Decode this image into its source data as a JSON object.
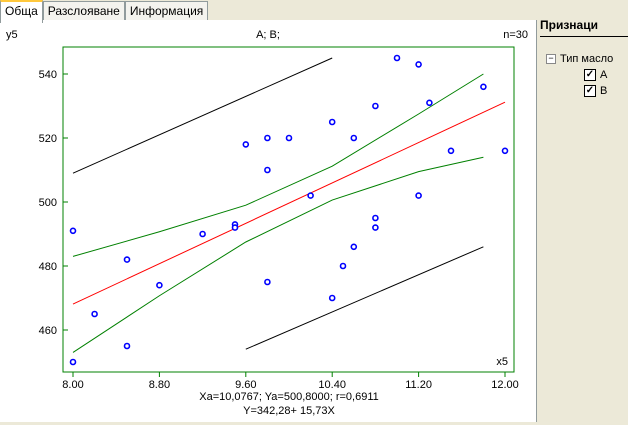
{
  "tabs": [
    "Обща",
    "Разслояване",
    "Информация"
  ],
  "side": {
    "title": "Признаци",
    "group": "Тип масло",
    "items": [
      {
        "label": "A",
        "checked": true
      },
      {
        "label": "B",
        "checked": true
      }
    ]
  },
  "chart_data": {
    "type": "scatter",
    "title": "A; B;",
    "n_label": "n=30",
    "ylabel": "y5",
    "xlabel": "x5",
    "xlim": [
      7.9,
      12.08
    ],
    "ylim": [
      446,
      551
    ],
    "xticks": [
      "8.00",
      "8.80",
      "9.60",
      "10.40",
      "11.20",
      "12.00"
    ],
    "yticks": [
      "460",
      "480",
      "500",
      "520",
      "540"
    ],
    "stats": "Xa=10,0767; Ya=500,8000; r=0,6911",
    "equation": "Y=342,28+ 15,73X",
    "points": [
      [
        8.0,
        450
      ],
      [
        8.0,
        491
      ],
      [
        8.2,
        465
      ],
      [
        8.5,
        482
      ],
      [
        8.5,
        455
      ],
      [
        8.8,
        474
      ],
      [
        9.2,
        490
      ],
      [
        9.5,
        493
      ],
      [
        9.5,
        492
      ],
      [
        9.6,
        518
      ],
      [
        9.8,
        520
      ],
      [
        9.8,
        510
      ],
      [
        9.8,
        475
      ],
      [
        10.0,
        520
      ],
      [
        10.2,
        502
      ],
      [
        10.4,
        525
      ],
      [
        10.4,
        470
      ],
      [
        10.5,
        480
      ],
      [
        10.6,
        520
      ],
      [
        10.6,
        486
      ],
      [
        10.8,
        530
      ],
      [
        10.8,
        495
      ],
      [
        10.8,
        492
      ],
      [
        11.0,
        545
      ],
      [
        11.2,
        543
      ],
      [
        11.2,
        502
      ],
      [
        11.3,
        531
      ],
      [
        11.5,
        516
      ],
      [
        11.8,
        536
      ],
      [
        12.0,
        516
      ]
    ],
    "regression": [
      [
        8.0,
        468.1
      ],
      [
        12.0,
        531.2
      ]
    ],
    "conf_upper": [
      [
        8.0,
        483
      ],
      [
        8.8,
        490.7
      ],
      [
        9.6,
        499
      ],
      [
        10.4,
        511.2
      ],
      [
        11.2,
        527.5
      ],
      [
        11.8,
        540
      ]
    ],
    "conf_lower": [
      [
        8.0,
        453
      ],
      [
        8.8,
        470.7
      ],
      [
        9.6,
        487.5
      ],
      [
        10.4,
        500.6
      ],
      [
        11.2,
        509.5
      ],
      [
        11.8,
        514
      ]
    ],
    "pred_upper": [
      [
        8.0,
        509
      ],
      [
        10.4,
        545
      ]
    ],
    "pred_lower": [
      [
        9.6,
        454
      ],
      [
        11.8,
        486
      ]
    ],
    "colors": {
      "points": "#0000FF",
      "regression": "#FF0000",
      "confidence": "#008000",
      "prediction": "#000000",
      "frame": "#008000"
    }
  }
}
